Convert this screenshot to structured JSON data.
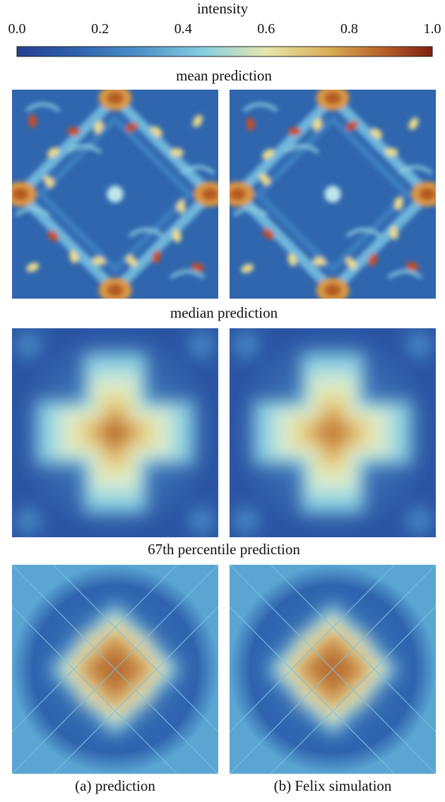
{
  "colorbar": {
    "label": "intensity",
    "lim": [
      0,
      1
    ],
    "ticks": [
      {
        "value": 0,
        "label": "0.0"
      },
      {
        "value": 0.2,
        "label": "0.2"
      },
      {
        "value": 0.4,
        "label": "0.4"
      },
      {
        "value": 0.6,
        "label": "0.6"
      },
      {
        "value": 0.8,
        "label": "0.8"
      },
      {
        "value": 1,
        "label": "1.0"
      }
    ]
  },
  "rows": [
    {
      "title": "mean prediction"
    },
    {
      "title": "median prediction"
    },
    {
      "title": "67th percentile prediction"
    }
  ],
  "captions": [
    "(a) prediction",
    "(b) Felix simulation"
  ]
}
